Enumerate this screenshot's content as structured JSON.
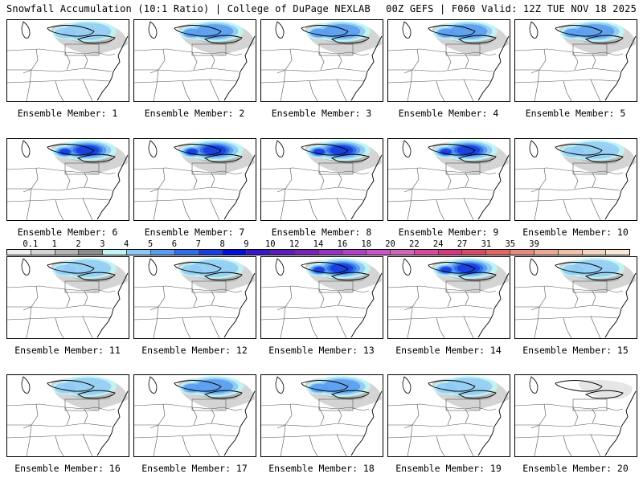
{
  "header": {
    "left": "Snowfall Accumulation (10:1 Ratio) | College of DuPage NEXLAB",
    "right": "00Z GEFS | F060 Valid: 12Z TUE NOV 18 2025"
  },
  "members": [
    {
      "label": "Ensemble Member: 1",
      "snow_intensity": "light"
    },
    {
      "label": "Ensemble Member: 2",
      "snow_intensity": "moderate"
    },
    {
      "label": "Ensemble Member: 3",
      "snow_intensity": "moderate"
    },
    {
      "label": "Ensemble Member: 4",
      "snow_intensity": "moderate"
    },
    {
      "label": "Ensemble Member: 5",
      "snow_intensity": "moderate"
    },
    {
      "label": "Ensemble Member: 6",
      "snow_intensity": "heavy"
    },
    {
      "label": "Ensemble Member: 7",
      "snow_intensity": "heavy"
    },
    {
      "label": "Ensemble Member: 8",
      "snow_intensity": "heavy"
    },
    {
      "label": "Ensemble Member: 9",
      "snow_intensity": "heavy"
    },
    {
      "label": "Ensemble Member: 10",
      "snow_intensity": "light"
    },
    {
      "label": "Ensemble Member: 11",
      "snow_intensity": "light"
    },
    {
      "label": "Ensemble Member: 12",
      "snow_intensity": "light"
    },
    {
      "label": "Ensemble Member: 13",
      "snow_intensity": "heavy"
    },
    {
      "label": "Ensemble Member: 14",
      "snow_intensity": "heavy"
    },
    {
      "label": "Ensemble Member: 15",
      "snow_intensity": "light"
    },
    {
      "label": "Ensemble Member: 16",
      "snow_intensity": "light"
    },
    {
      "label": "Ensemble Member: 17",
      "snow_intensity": "moderate"
    },
    {
      "label": "Ensemble Member: 18",
      "snow_intensity": "moderate"
    },
    {
      "label": "Ensemble Member: 19",
      "snow_intensity": "light"
    },
    {
      "label": "Ensemble Member: 20",
      "snow_intensity": "trace"
    }
  ],
  "legend": {
    "labels": [
      "0.1",
      "1",
      "2",
      "3",
      "4",
      "5",
      "6",
      "7",
      "8",
      "9",
      "10",
      "12",
      "14",
      "16",
      "18",
      "20",
      "22",
      "24",
      "27",
      "31",
      "35",
      "39"
    ],
    "colors": [
      "#eeeeee",
      "#d4d4d4",
      "#b4b4b4",
      "#8c8c8c",
      "#bff5f5",
      "#8fc8f5",
      "#5a9cf0",
      "#2f6fe8",
      "#1a3fe0",
      "#0010d8",
      "#3a16c8",
      "#5a1bb8",
      "#7a22b8",
      "#9632c0",
      "#b040c4",
      "#c854c8",
      "#d464b8",
      "#d8489c",
      "#d43a84",
      "#d64a6a",
      "#de6862",
      "#e48a80",
      "#eaa896",
      "#efc0aa",
      "#f4d6c0",
      "#fae8d8"
    ]
  }
}
